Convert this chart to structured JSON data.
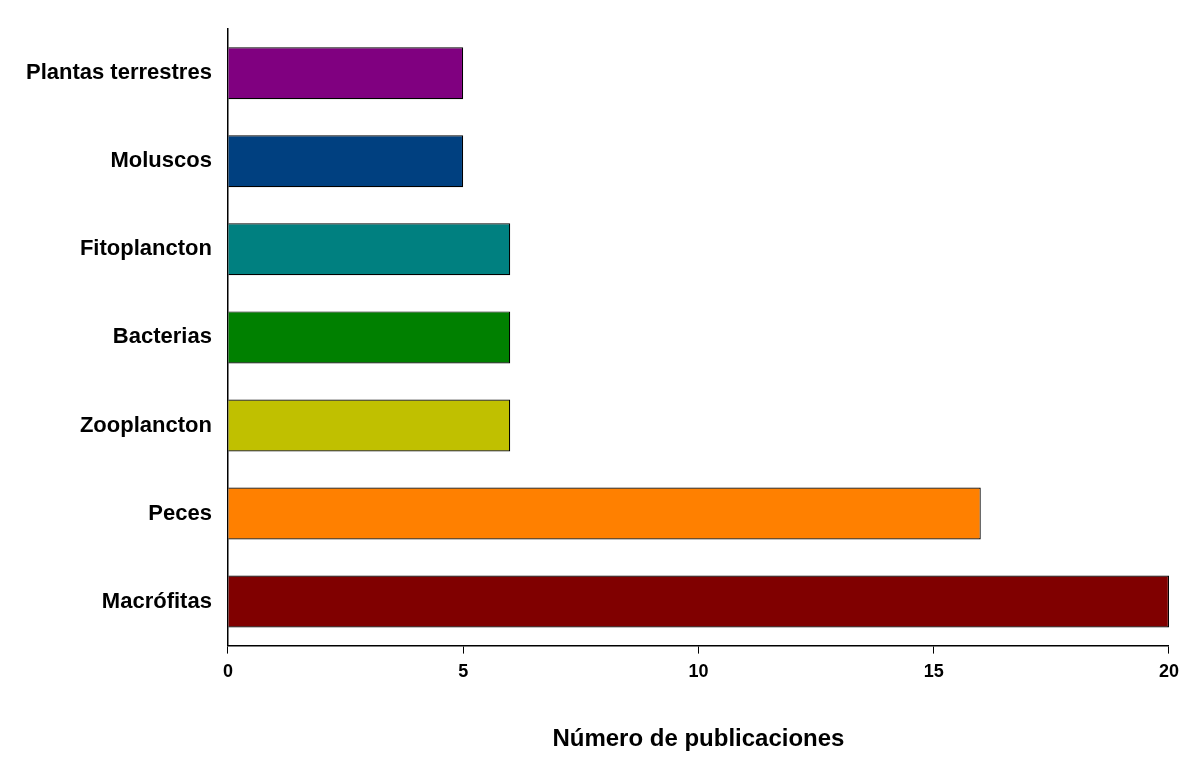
{
  "chart_data": {
    "type": "bar",
    "orientation": "horizontal",
    "xlabel": "Número de publicaciones",
    "categories": [
      "Plantas terrestres",
      "Moluscos",
      "Fitoplancton",
      "Bacterias",
      "Zooplancton",
      "Peces",
      "Macrófitas"
    ],
    "values": [
      5,
      5,
      6,
      6,
      6,
      16,
      20
    ],
    "colors": [
      "#800080",
      "#004080",
      "#008080",
      "#008000",
      "#c0c000",
      "#ff8000",
      "#800000"
    ],
    "xlim": [
      0,
      20
    ],
    "xticks": [
      0,
      5,
      10,
      15,
      20
    ],
    "grid": false,
    "legend": false
  }
}
